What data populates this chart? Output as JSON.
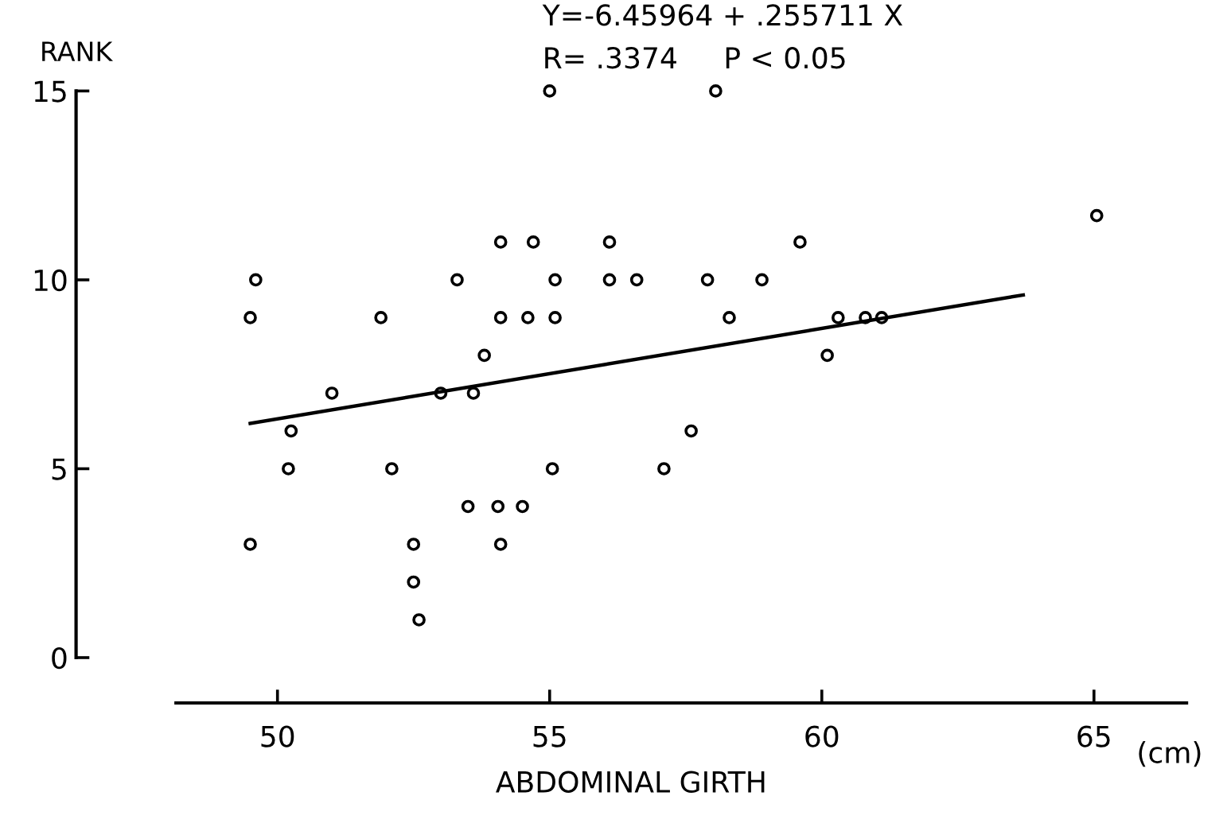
{
  "chart_data": {
    "type": "scatter",
    "xlabel": "ABDOMINAL GIRTH",
    "ylabel": "RANK",
    "annotations": [
      "Y=-6.45964 + .255711 X",
      "R= .3374     P < 0.05",
      "(cm)"
    ],
    "xlim": [
      46.3,
      66.7
    ],
    "ylim": [
      -1.2,
      15
    ],
    "xticks": [
      50,
      55,
      60,
      65
    ],
    "yticks": [
      0,
      5,
      10,
      15
    ],
    "grid": false,
    "legend": false,
    "marker": "circle",
    "series": [
      {
        "color": "#000000",
        "x": [
          49.6,
          49.5,
          51.9,
          54.1,
          53.3,
          54.1,
          53.8,
          51.0,
          53.0,
          53.6,
          50.25,
          50.2,
          52.1,
          49.5,
          52.5,
          53.5,
          54.05,
          54.1,
          52.5,
          52.6,
          55.0,
          58.05,
          54.7,
          56.1,
          59.6,
          55.1,
          56.1,
          56.6,
          57.9,
          58.9,
          54.6,
          55.1,
          58.3,
          60.3,
          60.8,
          61.1,
          60.1,
          57.6,
          55.05,
          57.1,
          54.5,
          65.05
        ],
        "values": [
          10,
          9,
          9,
          11,
          10,
          9,
          8,
          7,
          7,
          7,
          6,
          5,
          5,
          3,
          3,
          4,
          4,
          3,
          2,
          1,
          15,
          15,
          11,
          11,
          11,
          10,
          10,
          10,
          10,
          10,
          9,
          9,
          9,
          9,
          9,
          9,
          8,
          6,
          5,
          5,
          4,
          11.7
        ]
      },
      {
        "type": "line",
        "color": "#000000",
        "marker": "none",
        "line_style": "solid",
        "x": [
          49.5,
          63.7
        ],
        "values": [
          6.2,
          9.6
        ]
      }
    ]
  }
}
